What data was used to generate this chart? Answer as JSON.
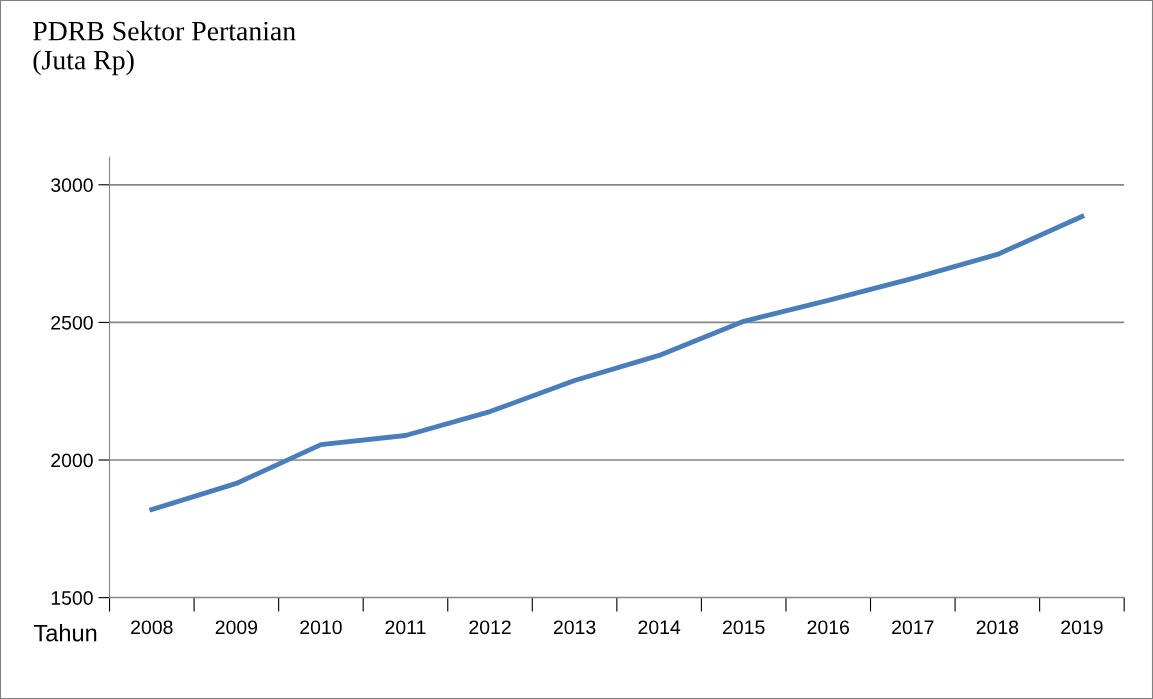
{
  "chart_data": {
    "type": "line",
    "ylabel": "PDRB Sektor Pertanian\n(Juta Rp)",
    "xlabel": "Tahun",
    "categories": [
      "2008",
      "2009",
      "2010",
      "2011",
      "2012",
      "2013",
      "2014",
      "2015",
      "2016",
      "2017",
      "2018",
      "2019"
    ],
    "series": [
      {
        "color": "#4a7ebb",
        "values": [
          1820,
          1915,
          2056,
          2089,
          2176,
          2289,
          2380,
          2504,
          2580,
          2660,
          2747,
          2885
        ]
      }
    ],
    "ylim": [
      1500,
      3100
    ],
    "yticks": [
      1500,
      2000,
      2500,
      3000
    ],
    "grid": "y",
    "marker": "none",
    "line_style": "solid"
  }
}
